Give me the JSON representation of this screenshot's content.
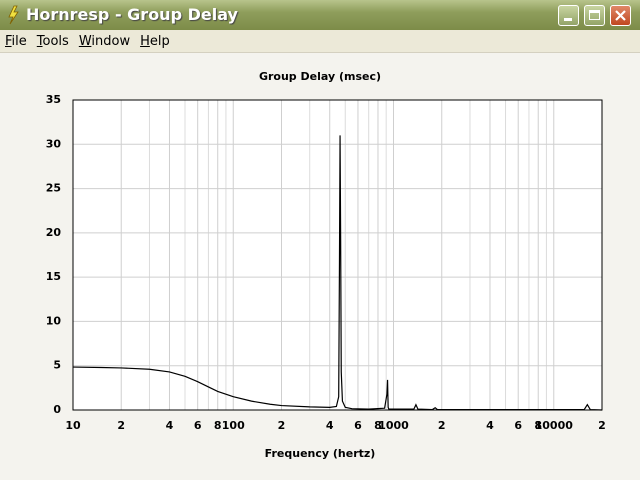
{
  "window": {
    "title": "Hornresp - Group Delay"
  },
  "menu": [
    "File",
    "Tools",
    "Window",
    "Help"
  ],
  "chart_data": {
    "type": "line",
    "title": "Group Delay (msec)",
    "x_label": "Frequency (hertz)",
    "x_scale": "log",
    "grid": true,
    "color": "#000000",
    "xlim": [
      10,
      20000
    ],
    "ylim": [
      0,
      35
    ],
    "yticks": [
      0,
      5,
      10,
      15,
      20,
      25,
      30,
      35
    ],
    "xticks": [
      10,
      {
        "value": 20,
        "label": "2"
      },
      {
        "value": 40,
        "label": "4"
      },
      {
        "value": 60,
        "label": "6"
      },
      {
        "value": 80,
        "label": "8"
      },
      100,
      {
        "value": 200,
        "label": "2"
      },
      {
        "value": 400,
        "label": "4"
      },
      {
        "value": 600,
        "label": "6"
      },
      {
        "value": 800,
        "label": "8"
      },
      1000,
      {
        "value": 2000,
        "label": "2"
      },
      {
        "value": 4000,
        "label": "4"
      },
      {
        "value": 6000,
        "label": "6"
      },
      {
        "value": 8000,
        "label": "8"
      },
      10000,
      {
        "value": 20000,
        "label": "2"
      }
    ],
    "xminor_ticks": [
      30,
      50,
      70,
      90,
      300,
      500,
      700,
      900,
      3000,
      5000,
      7000,
      9000
    ],
    "x": [
      10,
      15,
      20,
      30,
      40,
      50,
      60,
      70,
      80,
      100,
      130,
      170,
      200,
      300,
      400,
      440,
      455,
      460,
      464,
      468,
      472,
      480,
      500,
      550,
      700,
      880,
      910,
      918,
      922,
      926,
      935,
      1100,
      1340,
      1380,
      1420,
      1750,
      1820,
      1880,
      5000,
      15500,
      16200,
      16900,
      20000
    ],
    "values": [
      4.85,
      4.8,
      4.75,
      4.6,
      4.3,
      3.8,
      3.2,
      2.6,
      2.1,
      1.5,
      1.0,
      0.65,
      0.5,
      0.35,
      0.3,
      0.4,
      1.5,
      16.5,
      31,
      19,
      4.3,
      1,
      0.3,
      0.15,
      0.1,
      0.2,
      1.8,
      3.4,
      1.8,
      0.3,
      0.1,
      0.1,
      0.1,
      0.6,
      0.1,
      0.05,
      0.25,
      0.05,
      0.05,
      0.05,
      0.6,
      0.05,
      0
    ]
  }
}
